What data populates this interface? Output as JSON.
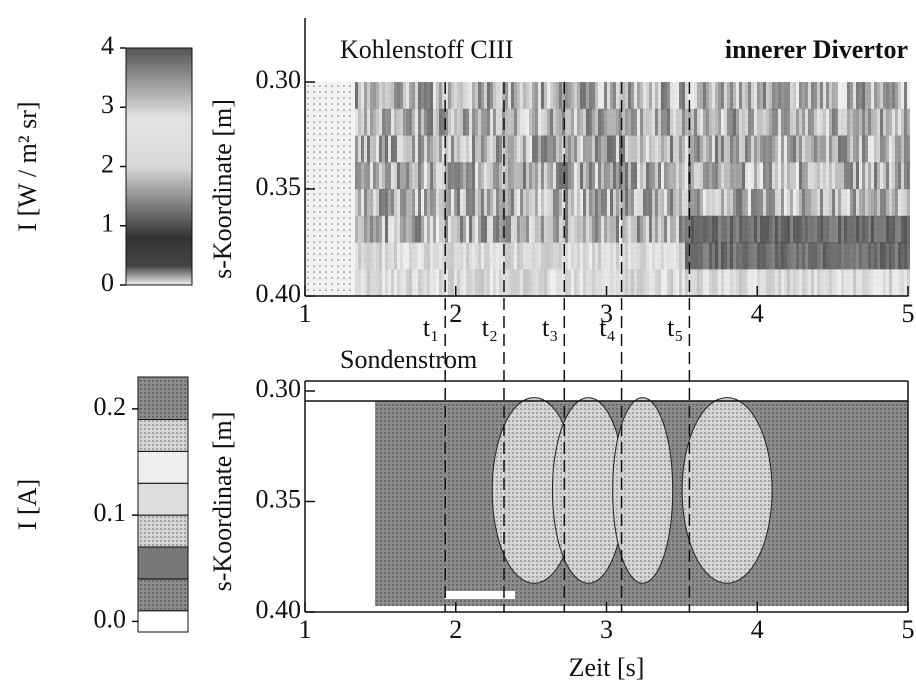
{
  "chart_data": [
    {
      "type": "heatmap",
      "title": "Kohlenstoff CIII",
      "annotation": "innerer Divertor",
      "ylabel": "s-Koordinate [m]",
      "xlim": [
        1,
        5
      ],
      "xticks": [
        1,
        2,
        3,
        4,
        5
      ],
      "ylim": [
        0.3,
        0.4
      ],
      "y_inverted": true,
      "yticks": [
        {
          "value": 0.3,
          "label": "0.30"
        },
        0.35,
        {
          "value": 0.4,
          "label": "0.40"
        }
      ],
      "colorbar": {
        "label": "I [W / m² sr]",
        "lim": [
          0,
          4
        ],
        "ticks": [
          0,
          1,
          2,
          3,
          4
        ]
      },
      "markers": {
        "x": [
          1.93,
          2.32,
          2.72,
          3.1,
          3.55
        ],
        "labels": [
          "t₁",
          "t₂",
          "t₃",
          "t₄",
          "t₅"
        ]
      }
    },
    {
      "type": "contour",
      "title": "Sondenstrom",
      "xlabel": "Zeit [s]",
      "ylabel": "s-Koordinate [m]",
      "xlim": [
        1,
        5
      ],
      "xticks": [
        1,
        2,
        3,
        4,
        5
      ],
      "ylim": [
        0.3,
        0.4
      ],
      "y_inverted": true,
      "yticks": [
        {
          "value": 0.3,
          "label": "0.30"
        },
        0.35,
        {
          "value": 0.4,
          "label": "0.40"
        }
      ],
      "colorbar": {
        "label": "I [A]",
        "lim": [
          -0.01,
          0.23
        ],
        "ticks": [
          {
            "value": 0,
            "label": "0.0"
          },
          0.1,
          0.2
        ],
        "levels": [
          -0.01,
          0.01,
          0.04,
          0.07,
          0.1,
          0.13,
          0.16,
          0.19,
          0.23
        ]
      }
    }
  ]
}
